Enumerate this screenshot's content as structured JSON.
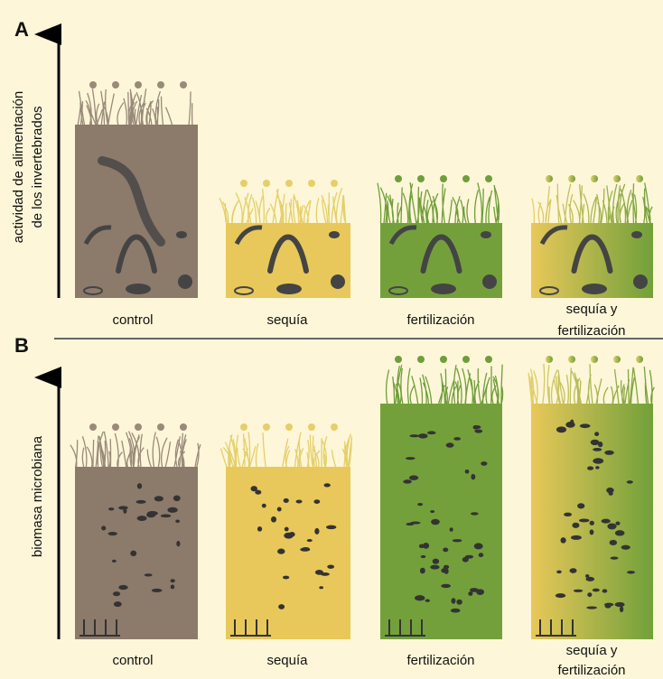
{
  "panel_a": {
    "label": "A",
    "y_axis_label": [
      "actividad de alimentación",
      "de los invertebrados"
    ],
    "columns": [
      {
        "lines": [
          "control"
        ]
      },
      {
        "lines": [
          "sequía"
        ]
      },
      {
        "lines": [
          "fertilización"
        ]
      },
      {
        "lines": [
          "sequía y",
          "fertilización"
        ]
      }
    ]
  },
  "panel_b": {
    "label": "B",
    "y_axis_label": [
      "biomasa microbiana"
    ],
    "columns": [
      {
        "lines": [
          "control"
        ]
      },
      {
        "lines": [
          "sequía"
        ]
      },
      {
        "lines": [
          "fertilización"
        ]
      },
      {
        "lines": [
          "sequía y",
          "fertilización"
        ]
      }
    ]
  }
}
